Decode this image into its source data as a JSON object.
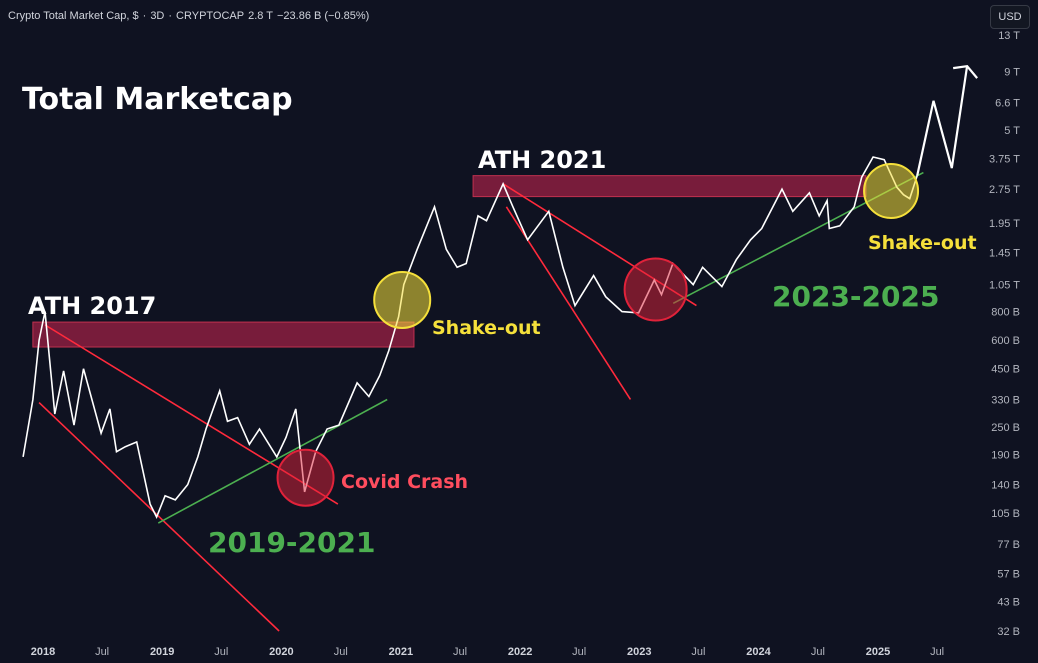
{
  "header": {
    "symbol": "Crypto Total Market Cap, $",
    "interval": "3D",
    "exchange": "CRYPTOCAP",
    "last": "2.8 T",
    "change": "−23.86 B (−0.85%)",
    "sep": "·"
  },
  "currency_button": "USD",
  "chart_data": {
    "type": "line",
    "title": "Total Marketcap",
    "yscale": "log",
    "ylim": [
      "13 T",
      "32 B"
    ],
    "y_ticks": [
      "13 T",
      "9 T",
      "6.6 T",
      "5 T",
      "3.75 T",
      "2.75 T",
      "1.95 T",
      "1.45 T",
      "1.05 T",
      "800 B",
      "600 B",
      "450 B",
      "330 B",
      "250 B",
      "190 B",
      "140 B",
      "105 B",
      "77 B",
      "57 B",
      "43 B",
      "32 B"
    ],
    "x_ticks": [
      {
        "label": "2018",
        "year": true
      },
      {
        "label": "Jul",
        "year": false
      },
      {
        "label": "2019",
        "year": true
      },
      {
        "label": "Jul",
        "year": false
      },
      {
        "label": "2020",
        "year": true
      },
      {
        "label": "Jul",
        "year": false
      },
      {
        "label": "2021",
        "year": true
      },
      {
        "label": "Jul",
        "year": false
      },
      {
        "label": "2022",
        "year": true
      },
      {
        "label": "Jul",
        "year": false
      },
      {
        "label": "2023",
        "year": true
      },
      {
        "label": "Jul",
        "year": false
      },
      {
        "label": "2024",
        "year": true
      },
      {
        "label": "Jul",
        "year": false
      },
      {
        "label": "2025",
        "year": true
      },
      {
        "label": "Jul",
        "year": false
      }
    ],
    "series": [
      {
        "values_billion": [
          [
            "2017-11-01",
            185
          ],
          [
            "2017-12-01",
            330
          ],
          [
            "2017-12-20",
            600
          ],
          [
            "2018-01-07",
            800
          ],
          [
            "2018-02-06",
            285
          ],
          [
            "2018-03-05",
            440
          ],
          [
            "2018-04-06",
            255
          ],
          [
            "2018-05-05",
            450
          ],
          [
            "2018-06-28",
            235
          ],
          [
            "2018-07-25",
            300
          ],
          [
            "2018-08-14",
            195
          ],
          [
            "2018-09-10",
            205
          ],
          [
            "2018-10-15",
            215
          ],
          [
            "2018-11-25",
            115
          ],
          [
            "2018-12-15",
            101
          ],
          [
            "2019-01-10",
            125
          ],
          [
            "2019-02-10",
            120
          ],
          [
            "2019-03-20",
            140
          ],
          [
            "2019-04-20",
            185
          ],
          [
            "2019-05-15",
            245
          ],
          [
            "2019-06-26",
            360
          ],
          [
            "2019-07-20",
            265
          ],
          [
            "2019-08-20",
            275
          ],
          [
            "2019-09-25",
            210
          ],
          [
            "2019-10-26",
            245
          ],
          [
            "2019-12-18",
            185
          ],
          [
            "2020-01-15",
            225
          ],
          [
            "2020-02-14",
            300
          ],
          [
            "2020-03-12",
            130
          ],
          [
            "2020-04-15",
            195
          ],
          [
            "2020-05-20",
            245
          ],
          [
            "2020-06-25",
            255
          ],
          [
            "2020-08-20",
            390
          ],
          [
            "2020-09-25",
            340
          ],
          [
            "2020-10-28",
            420
          ],
          [
            "2020-11-25",
            540
          ],
          [
            "2020-12-25",
            760
          ],
          [
            "2021-01-10",
            1050
          ],
          [
            "2021-02-20",
            1500
          ],
          [
            "2021-04-14",
            2300
          ],
          [
            "2021-05-20",
            1500
          ],
          [
            "2021-06-22",
            1250
          ],
          [
            "2021-07-20",
            1300
          ],
          [
            "2021-08-25",
            2100
          ],
          [
            "2021-09-20",
            2000
          ],
          [
            "2021-11-10",
            2900
          ],
          [
            "2021-12-10",
            2300
          ],
          [
            "2022-01-24",
            1650
          ],
          [
            "2022-03-30",
            2200
          ],
          [
            "2022-05-12",
            1250
          ],
          [
            "2022-06-18",
            850
          ],
          [
            "2022-08-14",
            1150
          ],
          [
            "2022-09-20",
            930
          ],
          [
            "2022-11-09",
            800
          ],
          [
            "2022-12-30",
            790
          ],
          [
            "2023-02-16",
            1100
          ],
          [
            "2023-03-10",
            950
          ],
          [
            "2023-04-14",
            1300
          ],
          [
            "2023-06-15",
            1050
          ],
          [
            "2023-07-14",
            1250
          ],
          [
            "2023-09-11",
            1030
          ],
          [
            "2023-10-25",
            1350
          ],
          [
            "2023-12-08",
            1650
          ],
          [
            "2024-01-11",
            1850
          ],
          [
            "2024-03-13",
            2750
          ],
          [
            "2024-04-15",
            2200
          ],
          [
            "2024-06-05",
            2650
          ],
          [
            "2024-07-05",
            2100
          ],
          [
            "2024-07-29",
            2450
          ],
          [
            "2024-08-05",
            1850
          ],
          [
            "2024-09-06",
            1900
          ],
          [
            "2024-10-20",
            2300
          ],
          [
            "2024-11-12",
            3100
          ],
          [
            "2024-12-17",
            3800
          ],
          [
            "2025-01-20",
            3700
          ],
          [
            "2025-02-28",
            2800
          ],
          [
            "2025-03-20",
            2600
          ],
          [
            "2025-04-08",
            2500
          ],
          [
            "2025-05-01",
            3150
          ]
        ]
      }
    ],
    "projection": {
      "values_billion": [
        [
          "2025-05-01",
          3150
        ],
        [
          "2025-06-20",
          6700
        ],
        [
          "2025-08-15",
          3400
        ],
        [
          "2025-10-01",
          9500
        ]
      ],
      "color": "#ffffff"
    }
  },
  "annotations": {
    "title": "Total Marketcap",
    "ath_2017": "ATH 2017",
    "ath_2021": "ATH 2021",
    "covid_crash": "Covid Crash",
    "shake_out_1": "Shake-out",
    "shake_out_2": "Shake-out",
    "range_2019_2021": "2019-2021",
    "range_2023_2025": "2023-2025"
  },
  "colors": {
    "background": "#0f1221",
    "price_line": "#ffffff",
    "ath_zone": "#8b1e3f",
    "trend_red": "#ff2a3c",
    "trend_green": "#4caf50",
    "circle_red": "#e0223a",
    "circle_yellow": "#f5e03b",
    "label_red": "#ff4d5e",
    "label_yellow": "#f5e03b",
    "label_green": "#4caf50"
  }
}
